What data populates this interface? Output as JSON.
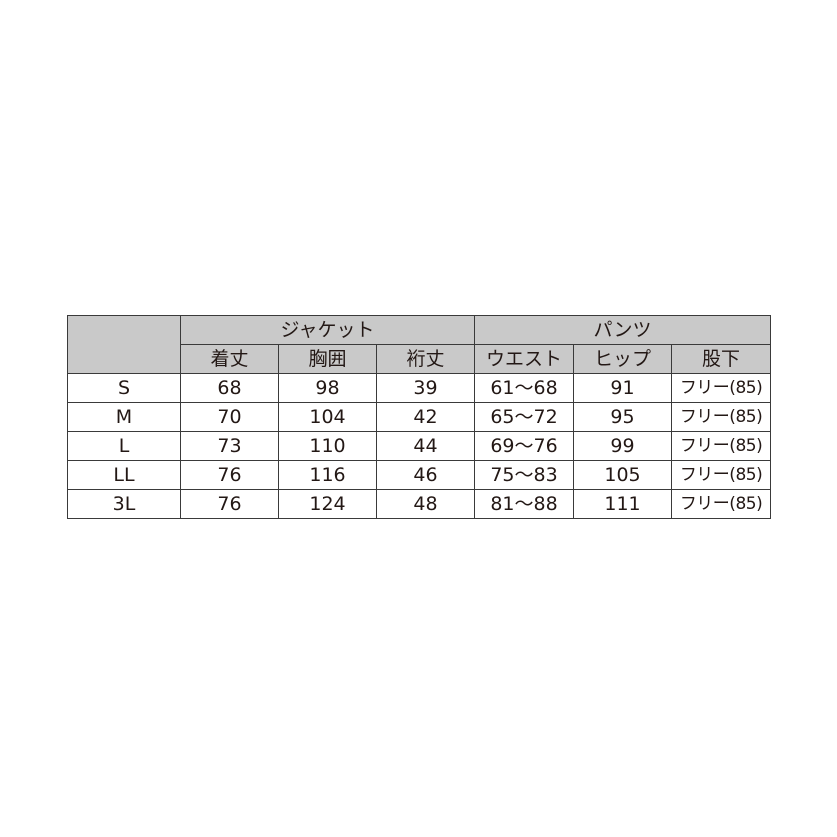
{
  "groups": {
    "jacket": "ジャケット",
    "pants": "パンツ"
  },
  "columns": [
    "着丈",
    "胸囲",
    "裄丈",
    "ウエスト",
    "ヒップ",
    "股下"
  ],
  "rows": [
    {
      "size": "S",
      "cells": [
        "68",
        "98",
        "39",
        "61〜68",
        "91",
        "フリー(85)"
      ]
    },
    {
      "size": "M",
      "cells": [
        "70",
        "104",
        "42",
        "65〜72",
        "95",
        "フリー(85)"
      ]
    },
    {
      "size": "L",
      "cells": [
        "73",
        "110",
        "44",
        "69〜76",
        "99",
        "フリー(85)"
      ]
    },
    {
      "size": "LL",
      "cells": [
        "76",
        "116",
        "46",
        "75〜83",
        "105",
        "フリー(85)"
      ]
    },
    {
      "size": "3L",
      "cells": [
        "76",
        "124",
        "48",
        "81〜88",
        "111",
        "フリー(85)"
      ]
    }
  ],
  "colors": {
    "header_bg": "#c9c9c9",
    "border": "#3a3a3a"
  }
}
